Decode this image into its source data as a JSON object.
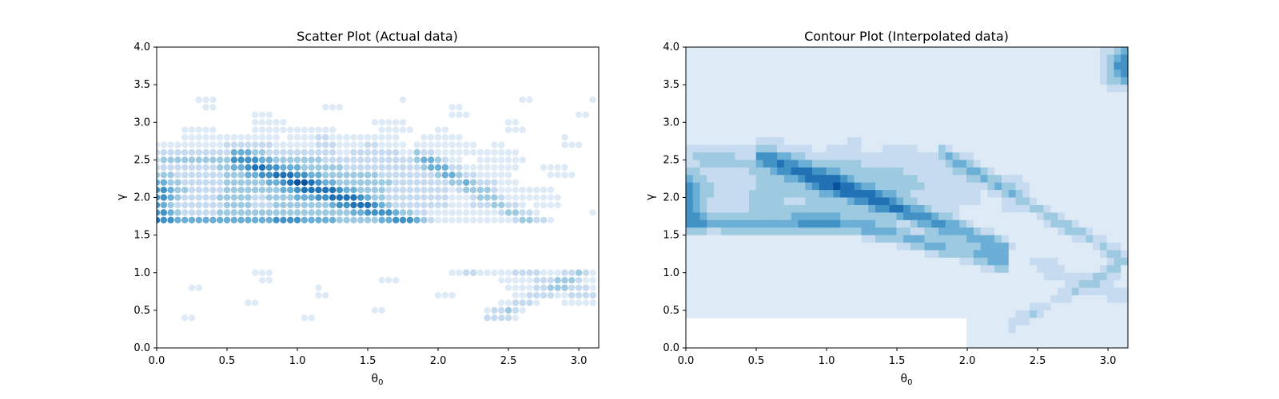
{
  "chart_data": [
    {
      "type": "scatter",
      "title": "Scatter Plot (Actual data)",
      "xlabel": "θ",
      "xlabel_sub": "0",
      "ylabel": "γ",
      "xlim": [
        0,
        3.1416
      ],
      "ylim": [
        0,
        4.0
      ],
      "xticks": [
        "0.0",
        "0.5",
        "1.0",
        "1.5",
        "2.0",
        "2.5",
        "3.0"
      ],
      "yticks": [
        "0.0",
        "0.5",
        "1.0",
        "1.5",
        "2.0",
        "2.5",
        "3.0",
        "3.5",
        "4.0"
      ],
      "grid": false,
      "colormap": [
        "#f7fbff",
        "#deebf7",
        "#c6dbef",
        "#9ecae1",
        "#6baed6",
        "#4292c6",
        "#2171b5",
        "#08519c",
        "#08306b"
      ],
      "grid_x": [
        0.0,
        0.05,
        0.1,
        0.15,
        0.2,
        0.25,
        0.3,
        0.35,
        0.4,
        0.45,
        0.5,
        0.55,
        0.6,
        0.65,
        0.7,
        0.75,
        0.8,
        0.85,
        0.9,
        0.95,
        1.0,
        1.05,
        1.1,
        1.15,
        1.2,
        1.25,
        1.3,
        1.35,
        1.4,
        1.45,
        1.5,
        1.55,
        1.6,
        1.65,
        1.7,
        1.75,
        1.8,
        1.85,
        1.9,
        1.95,
        2.0,
        2.05,
        2.1,
        2.15,
        2.2,
        2.25,
        2.3,
        2.35,
        2.4,
        2.45,
        2.5,
        2.55,
        2.6,
        2.65,
        2.7,
        2.75,
        2.8,
        2.85,
        2.9,
        2.95,
        3.0,
        3.05,
        3.1
      ],
      "grid_y": [
        0.4,
        0.5,
        0.6,
        0.7,
        0.8,
        0.9,
        1.0,
        1.7,
        1.8,
        1.9,
        2.0,
        2.1,
        2.2,
        2.3,
        2.4,
        2.5,
        2.6,
        2.7,
        2.8,
        2.9,
        3.0,
        3.1,
        3.2,
        3.3
      ]
    },
    {
      "type": "heatmap",
      "subtype": "filled-contour",
      "title": "Contour Plot (Interpolated data)",
      "xlabel": "θ",
      "xlabel_sub": "0",
      "ylabel": "γ",
      "xlim": [
        0,
        3.1416
      ],
      "ylim": [
        0,
        4.0
      ],
      "xticks": [
        "0.0",
        "0.5",
        "1.0",
        "1.5",
        "2.0",
        "2.5",
        "3.0"
      ],
      "yticks": [
        "0.0",
        "0.5",
        "1.0",
        "1.5",
        "2.0",
        "2.5",
        "3.0",
        "3.5",
        "4.0"
      ],
      "grid": false,
      "colormap": [
        "#f7fbff",
        "#deebf7",
        "#c6dbef",
        "#9ecae1",
        "#6baed6",
        "#4292c6",
        "#2171b5",
        "#08519c",
        "#08306b"
      ]
    }
  ]
}
